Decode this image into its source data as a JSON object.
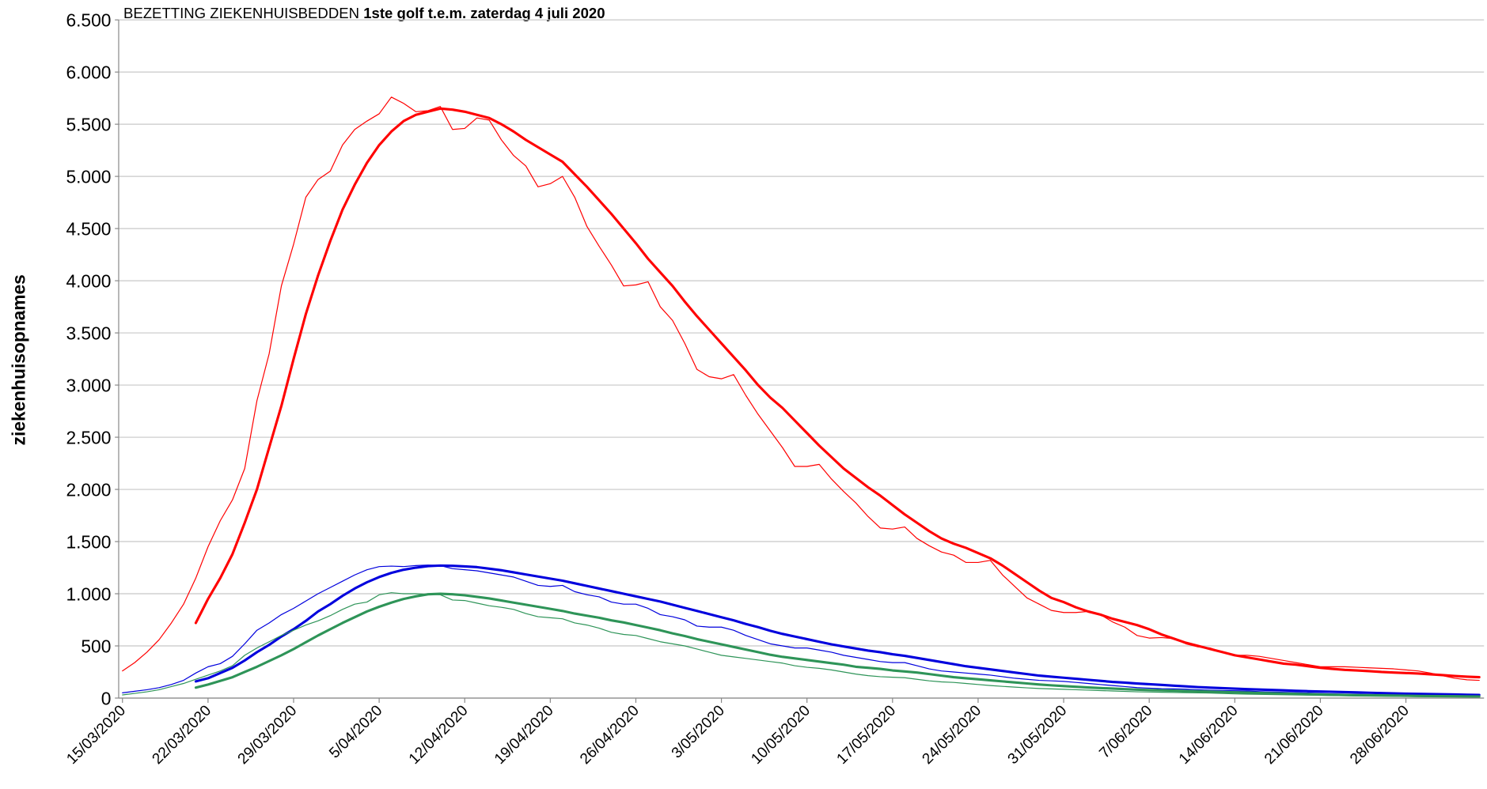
{
  "chart_data": {
    "type": "line",
    "title": "BEZETTING ZIEKENHUISBEDDEN",
    "title_emphasis": "1ste golf t.e.m. zaterdag 4 juli 2020",
    "y_label": "ziekenhuisopnames",
    "grid": true,
    "ylim": [
      0,
      6500
    ],
    "yticks": [
      0,
      500,
      {
        "value": 1000,
        "label": "1.000"
      },
      {
        "value": 1500,
        "label": "1.500"
      },
      {
        "value": 2000,
        "label": "2.000"
      },
      {
        "value": 2500,
        "label": "2.500"
      },
      {
        "value": 3000,
        "label": "3.000"
      },
      {
        "value": 3500,
        "label": "3.500"
      },
      {
        "value": 4000,
        "label": "4.000"
      },
      {
        "value": 4500,
        "label": "4.500"
      },
      {
        "value": 5000,
        "label": "5.000"
      },
      {
        "value": 5500,
        "label": "5.500"
      },
      {
        "value": 6000,
        "label": "6.000"
      },
      {
        "value": 6500,
        "label": "6.500"
      }
    ],
    "categories": [
      "15/03/2020",
      null,
      null,
      null,
      null,
      null,
      null,
      "22/03/2020",
      null,
      null,
      null,
      null,
      null,
      null,
      "29/03/2020",
      null,
      null,
      null,
      null,
      null,
      null,
      "5/04/2020",
      null,
      null,
      null,
      null,
      null,
      null,
      "12/04/2020",
      null,
      null,
      null,
      null,
      null,
      null,
      "19/04/2020",
      null,
      null,
      null,
      null,
      null,
      null,
      "26/04/2020",
      null,
      null,
      null,
      null,
      null,
      null,
      "3/05/2020",
      null,
      null,
      null,
      null,
      null,
      null,
      "10/05/2020",
      null,
      null,
      null,
      null,
      null,
      null,
      "17/05/2020",
      null,
      null,
      null,
      null,
      null,
      null,
      "24/05/2020",
      null,
      null,
      null,
      null,
      null,
      null,
      "31/05/2020",
      null,
      null,
      null,
      null,
      null,
      null,
      "7/06/2020",
      null,
      null,
      null,
      null,
      null,
      null,
      "14/06/2020",
      null,
      null,
      null,
      null,
      null,
      null,
      "21/06/2020",
      null,
      null,
      null,
      null,
      null,
      null,
      "28/06/2020",
      null,
      null,
      null,
      null,
      null,
      null
    ],
    "series": [
      {
        "color": "#ff0000",
        "line_width": 1,
        "values": [
          260,
          340,
          440,
          560,
          720,
          900,
          1150,
          1450,
          1700,
          1900,
          2200,
          2850,
          3300,
          3950,
          4350,
          4800,
          4970,
          5050,
          5300,
          5450,
          5530,
          5600,
          5760,
          5700,
          5620,
          5630,
          5670,
          5450,
          5460,
          5560,
          5540,
          5350,
          5200,
          5100,
          4900,
          4930,
          5000,
          4800,
          4520,
          4330,
          4150,
          3950,
          3960,
          3990,
          3750,
          3620,
          3400,
          3150,
          3080,
          3060,
          3100,
          2900,
          2720,
          2560,
          2400,
          2220,
          2220,
          2240,
          2100,
          1980,
          1870,
          1740,
          1630,
          1620,
          1640,
          1530,
          1460,
          1400,
          1370,
          1300,
          1300,
          1320,
          1180,
          1070,
          960,
          900,
          840,
          820,
          820,
          830,
          800,
          730,
          680,
          600,
          575,
          580,
          570,
          520,
          490,
          480,
          440,
          410,
          410,
          400,
          380,
          360,
          340,
          320,
          300,
          300,
          300,
          295,
          290,
          285,
          280,
          270,
          260,
          240,
          215,
          190,
          175,
          170
        ]
      },
      {
        "color": "#ff0000",
        "line_width": 2.6,
        "values": [
          null,
          null,
          null,
          null,
          null,
          null,
          720,
          950,
          1150,
          1380,
          1680,
          2000,
          2400,
          2800,
          3250,
          3680,
          4050,
          4380,
          4680,
          4920,
          5130,
          5300,
          5430,
          5530,
          5590,
          5620,
          5650,
          5640,
          5620,
          5590,
          5560,
          5500,
          5430,
          5350,
          5280,
          5210,
          5140,
          5020,
          4900,
          4770,
          4640,
          4500,
          4360,
          4210,
          4080,
          3950,
          3800,
          3660,
          3530,
          3400,
          3270,
          3140,
          3000,
          2880,
          2780,
          2660,
          2540,
          2420,
          2310,
          2200,
          2110,
          2020,
          1940,
          1850,
          1760,
          1680,
          1600,
          1530,
          1480,
          1440,
          1390,
          1340,
          1270,
          1190,
          1110,
          1030,
          960,
          920,
          870,
          830,
          800,
          760,
          730,
          700,
          660,
          610,
          570,
          530,
          500,
          470,
          440,
          410,
          390,
          370,
          350,
          330,
          320,
          305,
          290,
          280,
          270,
          265,
          258,
          250,
          245,
          240,
          235,
          228,
          220,
          212,
          205,
          200
        ]
      },
      {
        "color": "#0000dd",
        "line_width": 1,
        "values": [
          50,
          65,
          80,
          100,
          130,
          170,
          240,
          300,
          330,
          400,
          520,
          650,
          720,
          800,
          860,
          930,
          1000,
          1060,
          1120,
          1180,
          1230,
          1260,
          1265,
          1260,
          1270,
          1275,
          1270,
          1240,
          1230,
          1220,
          1200,
          1180,
          1160,
          1120,
          1080,
          1070,
          1080,
          1020,
          990,
          970,
          920,
          900,
          900,
          860,
          800,
          780,
          750,
          690,
          680,
          680,
          650,
          600,
          560,
          520,
          500,
          480,
          480,
          460,
          440,
          410,
          390,
          370,
          350,
          340,
          340,
          310,
          280,
          260,
          250,
          240,
          230,
          220,
          205,
          190,
          180,
          170,
          165,
          160,
          150,
          140,
          130,
          120,
          110,
          100,
          95,
          90,
          88,
          85,
          80,
          75,
          72,
          70,
          68,
          62,
          58,
          55,
          52,
          48,
          44,
          40,
          38,
          36,
          34,
          32,
          30,
          28,
          27,
          26,
          24,
          22,
          21,
          20
        ]
      },
      {
        "color": "#0000dd",
        "line_width": 2.6,
        "values": [
          null,
          null,
          null,
          null,
          null,
          null,
          160,
          190,
          240,
          290,
          360,
          440,
          510,
          590,
          660,
          740,
          830,
          900,
          980,
          1050,
          1110,
          1160,
          1200,
          1230,
          1250,
          1265,
          1270,
          1268,
          1262,
          1255,
          1240,
          1225,
          1205,
          1185,
          1165,
          1145,
          1125,
          1100,
          1075,
          1050,
          1025,
          1000,
          975,
          950,
          925,
          895,
          865,
          835,
          805,
          775,
          745,
          710,
          680,
          645,
          615,
          590,
          565,
          540,
          515,
          495,
          475,
          455,
          440,
          420,
          405,
          385,
          365,
          345,
          325,
          305,
          290,
          275,
          260,
          245,
          230,
          215,
          205,
          195,
          185,
          175,
          165,
          155,
          148,
          140,
          133,
          126,
          119,
          112,
          105,
          100,
          95,
          90,
          86,
          82,
          78,
          74,
          70,
          66,
          63,
          60,
          57,
          54,
          51,
          48,
          45,
          42,
          40,
          38,
          36,
          34,
          32,
          30
        ]
      },
      {
        "color": "#2e9458",
        "line_width": 1,
        "values": [
          30,
          45,
          60,
          80,
          110,
          140,
          180,
          220,
          260,
          310,
          410,
          480,
          540,
          600,
          650,
          700,
          740,
          790,
          850,
          900,
          920,
          990,
          1010,
          1000,
          1000,
          995,
          990,
          940,
          935,
          910,
          885,
          870,
          850,
          810,
          780,
          770,
          760,
          720,
          700,
          670,
          630,
          610,
          600,
          570,
          540,
          520,
          500,
          470,
          440,
          410,
          395,
          380,
          365,
          350,
          335,
          310,
          295,
          285,
          270,
          250,
          230,
          215,
          205,
          200,
          195,
          180,
          165,
          155,
          150,
          140,
          130,
          120,
          112,
          105,
          98,
          92,
          88,
          84,
          80,
          76,
          72,
          68,
          64,
          60,
          58,
          56,
          54,
          52,
          50,
          48,
          44,
          40,
          38,
          36,
          34,
          32,
          30,
          28,
          26,
          24,
          22,
          20,
          19,
          18,
          17,
          16,
          15,
          14,
          13,
          12,
          11,
          10
        ]
      },
      {
        "color": "#2e9458",
        "line_width": 2.6,
        "values": [
          null,
          null,
          null,
          null,
          null,
          null,
          100,
          130,
          165,
          200,
          250,
          300,
          355,
          410,
          470,
          535,
          600,
          660,
          720,
          775,
          830,
          875,
          915,
          950,
          975,
          995,
          1000,
          995,
          985,
          970,
          955,
          935,
          915,
          895,
          875,
          855,
          835,
          810,
          790,
          770,
          745,
          725,
          700,
          675,
          650,
          620,
          595,
          565,
          540,
          515,
          490,
          465,
          440,
          415,
          395,
          380,
          365,
          350,
          335,
          320,
          300,
          290,
          280,
          265,
          255,
          245,
          230,
          215,
          200,
          190,
          180,
          170,
          160,
          150,
          140,
          130,
          122,
          115,
          108,
          102,
          96,
          91,
          86,
          81,
          77,
          74,
          71,
          68,
          65,
          62,
          58,
          55,
          52,
          49,
          46,
          43,
          40,
          37,
          34,
          32,
          30,
          28,
          27,
          26,
          24,
          22,
          20,
          19,
          18,
          17,
          16,
          15
        ]
      }
    ]
  }
}
